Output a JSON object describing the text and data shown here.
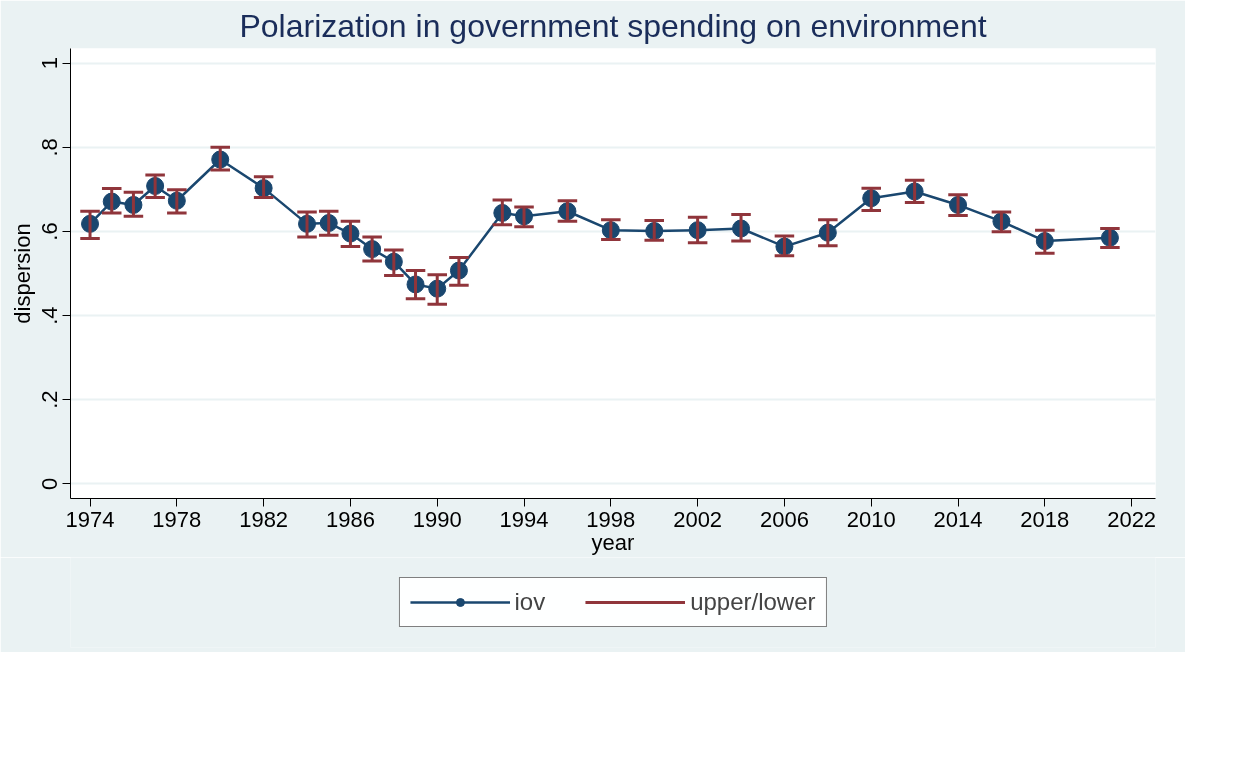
{
  "chart_data": {
    "type": "line",
    "title": "Polarization in government spending on environment",
    "xlabel": "year",
    "ylabel": "dispersion",
    "x": [
      1974,
      1975,
      1976,
      1977,
      1978,
      1980,
      1982,
      1984,
      1985,
      1986,
      1987,
      1988,
      1989,
      1990,
      1991,
      1993,
      1994,
      1996,
      1998,
      2000,
      2002,
      2004,
      2006,
      2008,
      2010,
      2012,
      2014,
      2016,
      2018,
      2021
    ],
    "series": [
      {
        "name": "iov",
        "color": "#1a476f",
        "values": [
          0.618,
          0.671,
          0.663,
          0.708,
          0.673,
          0.771,
          0.703,
          0.618,
          0.62,
          0.595,
          0.558,
          0.528,
          0.474,
          0.464,
          0.507,
          0.644,
          0.636,
          0.648,
          0.603,
          0.601,
          0.603,
          0.607,
          0.564,
          0.597,
          0.679,
          0.695,
          0.663,
          0.624,
          0.577,
          0.585
        ],
        "errors": [
          [
            0.583,
            0.648
          ],
          [
            0.644,
            0.702
          ],
          [
            0.636,
            0.693
          ],
          [
            0.681,
            0.734
          ],
          [
            0.644,
            0.699
          ],
          [
            0.746,
            0.8
          ],
          [
            0.681,
            0.73
          ],
          [
            0.587,
            0.646
          ],
          [
            0.591,
            0.648
          ],
          [
            0.564,
            0.624
          ],
          [
            0.53,
            0.587
          ],
          [
            0.495,
            0.556
          ],
          [
            0.44,
            0.507
          ],
          [
            0.427,
            0.497
          ],
          [
            0.472,
            0.538
          ],
          [
            0.616,
            0.675
          ],
          [
            0.611,
            0.658
          ],
          [
            0.624,
            0.673
          ],
          [
            0.581,
            0.628
          ],
          [
            0.579,
            0.626
          ],
          [
            0.573,
            0.634
          ],
          [
            0.577,
            0.64
          ],
          [
            0.542,
            0.589
          ],
          [
            0.566,
            0.628
          ],
          [
            0.65,
            0.703
          ],
          [
            0.669,
            0.722
          ],
          [
            0.638,
            0.687
          ],
          [
            0.599,
            0.646
          ],
          [
            0.548,
            0.603
          ],
          [
            0.562,
            0.607
          ]
        ]
      }
    ],
    "annotations": [
      "upper/lower"
    ],
    "xlim": [
      1973.1,
      2023.1
    ],
    "xticks": [
      1974,
      1978,
      1982,
      1986,
      1990,
      1994,
      1998,
      2002,
      2006,
      2010,
      2014,
      2018,
      2022
    ],
    "ylim": [
      -0.035,
      1.035
    ],
    "yticks": [
      0,
      {
        "value": 0.2,
        "label": ".2"
      },
      {
        "value": 0.4,
        "label": ".4"
      },
      {
        "value": 0.6,
        "label": ".6"
      },
      {
        "value": 0.8,
        "label": ".8"
      },
      1
    ],
    "grid": "y",
    "legend": "bottom",
    "marker": "circle",
    "line_style": "solid"
  }
}
